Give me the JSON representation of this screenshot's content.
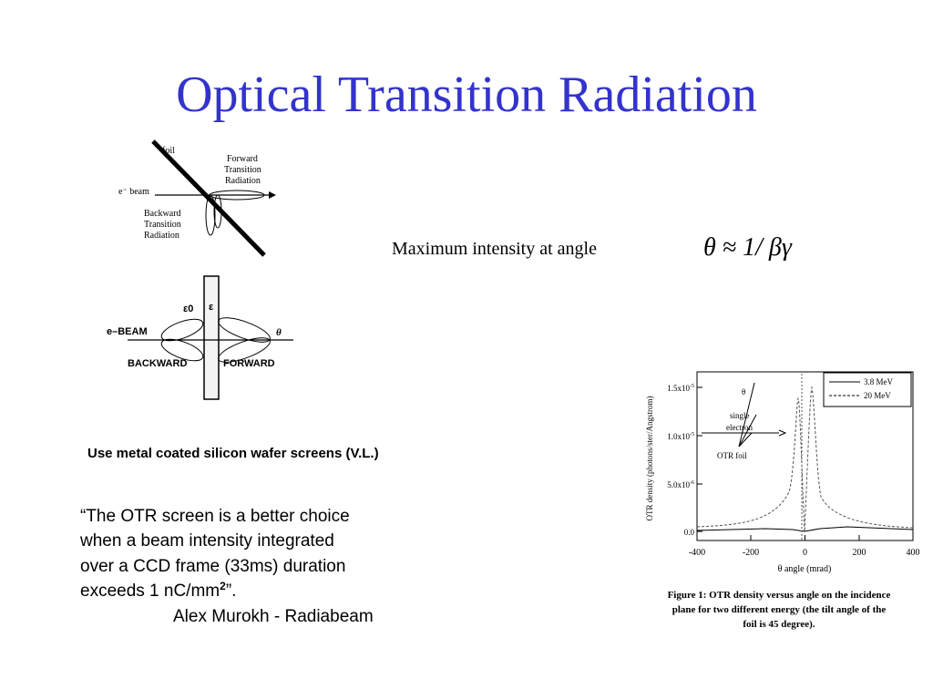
{
  "title": "Optical Transition Radiation",
  "diagram_top": {
    "foil": "foil",
    "forward": [
      "Forward",
      "Transition",
      "Radiation"
    ],
    "beam": "e⁻ beam",
    "backward": [
      "Backward",
      "Transition",
      "Radiation"
    ]
  },
  "diagram_bottom": {
    "eps0": "ε0",
    "eps": "ε",
    "beam": "e–BEAM",
    "theta": "θ",
    "backward": "BACKWARD",
    "forward": "FORWARD"
  },
  "formula": {
    "text": "Maximum intensity at angle",
    "math": "θ ≈ 1/ βγ"
  },
  "note": "Use metal coated silicon wafer screens (V.L.)",
  "quote": {
    "lines": [
      "“The OTR screen is a better choice",
      "when a beam intensity integrated",
      "over a CCD frame (33ms) duration",
      "exceeds 1 nC/mm"
    ],
    "superscript": "2",
    "closing": "”.",
    "author": "Alex Murokh - Radiabeam"
  },
  "plot": {
    "y_label": "OTR density (photons/ster/Angstrom)",
    "x_label": "θ angle (mrad)",
    "yticks": [
      {
        "text": "1.5x10",
        "exp": "-5"
      },
      {
        "text": "1.0x10",
        "exp": "-5"
      },
      {
        "text": "5.0x10",
        "exp": "-6"
      },
      {
        "text": "0.0"
      }
    ],
    "xticks": [
      "-400",
      "-200",
      "0",
      "200",
      "400"
    ],
    "legend": [
      "3.8 MeV",
      "20 MeV"
    ],
    "inset": {
      "theta": "θ",
      "single": [
        "single",
        "electron"
      ],
      "foil": "OTR foil"
    },
    "caption": [
      "Figure 1: OTR density versus angle on the incidence",
      "plane for two different energy (the tilt angle of the",
      "foil is 45 degree)."
    ]
  }
}
